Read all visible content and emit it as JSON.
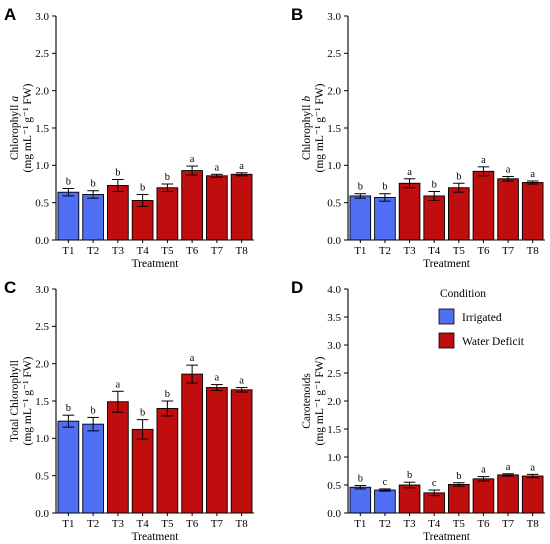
{
  "colors": {
    "irrigated": "#4f6ff4",
    "water_deficit": "#c00d0d",
    "bar_edge": "#000000",
    "axis": "#000000"
  },
  "legend": {
    "title": "Condition",
    "entries": [
      {
        "label": "Irrigated",
        "color": "#4f6ff4"
      },
      {
        "label": "Water Deficit",
        "color": "#c00d0d"
      }
    ]
  },
  "chart_data": [
    {
      "panel": "A",
      "type": "bar",
      "xlabel": "Treatment",
      "ylabel_line1": "Chlorophyll a",
      "ylabel_line2": "(mg mL⁻¹ g⁻¹ FW)",
      "ylim": [
        0,
        3.0
      ],
      "yticks": [
        "0.0",
        "0.5",
        "1.0",
        "1.5",
        "2.0",
        "2.5",
        "3.0"
      ],
      "categories": [
        "T1",
        "T2",
        "T3",
        "T4",
        "T5",
        "T6",
        "T7",
        "T8"
      ],
      "conditions": [
        "Irrigated",
        "Irrigated",
        "Water Deficit",
        "Water Deficit",
        "Water Deficit",
        "Water Deficit",
        "Water Deficit",
        "Water Deficit"
      ],
      "values": [
        0.64,
        0.61,
        0.73,
        0.53,
        0.7,
        0.93,
        0.86,
        0.88
      ],
      "errors": [
        0.05,
        0.05,
        0.08,
        0.08,
        0.05,
        0.06,
        0.02,
        0.02
      ],
      "letters": [
        "b",
        "b",
        "b",
        "b",
        "b",
        "a",
        "a",
        "a"
      ]
    },
    {
      "panel": "B",
      "type": "bar",
      "xlabel": "Treatment",
      "ylabel_line1": "Chlorophyll b",
      "ylabel_line2": "(mg mL⁻¹ g⁻¹ FW)",
      "ylim": [
        0,
        3.0
      ],
      "yticks": [
        "0.0",
        "0.5",
        "1.0",
        "1.5",
        "2.0",
        "2.5",
        "3.0"
      ],
      "categories": [
        "T1",
        "T2",
        "T3",
        "T4",
        "T5",
        "T6",
        "T7",
        "T8"
      ],
      "conditions": [
        "Irrigated",
        "Irrigated",
        "Water Deficit",
        "Water Deficit",
        "Water Deficit",
        "Water Deficit",
        "Water Deficit",
        "Water Deficit"
      ],
      "values": [
        0.59,
        0.57,
        0.76,
        0.59,
        0.7,
        0.92,
        0.82,
        0.77
      ],
      "errors": [
        0.03,
        0.05,
        0.06,
        0.06,
        0.06,
        0.06,
        0.03,
        0.02
      ],
      "letters": [
        "b",
        "b",
        "a",
        "b",
        "b",
        "a",
        "a",
        "a"
      ]
    },
    {
      "panel": "C",
      "type": "bar",
      "xlabel": "Treatment",
      "ylabel_line1": "Total Chlorophyll",
      "ylabel_line2": "(mg mL⁻¹ g⁻¹ FW)",
      "ylim": [
        0,
        3.0
      ],
      "yticks": [
        "0.0",
        "0.5",
        "1.0",
        "1.5",
        "2.0",
        "2.5",
        "3.0"
      ],
      "categories": [
        "T1",
        "T2",
        "T3",
        "T4",
        "T5",
        "T6",
        "T7",
        "T8"
      ],
      "conditions": [
        "Irrigated",
        "Irrigated",
        "Water Deficit",
        "Water Deficit",
        "Water Deficit",
        "Water Deficit",
        "Water Deficit",
        "Water Deficit"
      ],
      "values": [
        1.23,
        1.19,
        1.49,
        1.12,
        1.4,
        1.86,
        1.68,
        1.65
      ],
      "errors": [
        0.08,
        0.09,
        0.14,
        0.13,
        0.1,
        0.12,
        0.04,
        0.03
      ],
      "letters": [
        "b",
        "b",
        "a",
        "b",
        "b",
        "a",
        "a",
        "a"
      ]
    },
    {
      "panel": "D",
      "type": "bar",
      "xlabel": "Treatment",
      "ylabel_line1": "Carotenoids",
      "ylabel_line2": "(mg mL⁻¹ g⁻¹ FW)",
      "ylim": [
        0,
        4.0
      ],
      "yticks": [
        "0.0",
        "0.5",
        "1.0",
        "1.5",
        "2.0",
        "2.5",
        "3.0",
        "3.5",
        "4.0"
      ],
      "categories": [
        "T1",
        "T2",
        "T3",
        "T4",
        "T5",
        "T6",
        "T7",
        "T8"
      ],
      "conditions": [
        "Irrigated",
        "Irrigated",
        "Water Deficit",
        "Water Deficit",
        "Water Deficit",
        "Water Deficit",
        "Water Deficit",
        "Water Deficit"
      ],
      "values": [
        0.46,
        0.41,
        0.5,
        0.36,
        0.51,
        0.61,
        0.68,
        0.66
      ],
      "errors": [
        0.03,
        0.02,
        0.05,
        0.05,
        0.03,
        0.04,
        0.02,
        0.03
      ],
      "letters": [
        "b",
        "c",
        "b",
        "c",
        "b",
        "a",
        "a",
        "a"
      ]
    }
  ]
}
